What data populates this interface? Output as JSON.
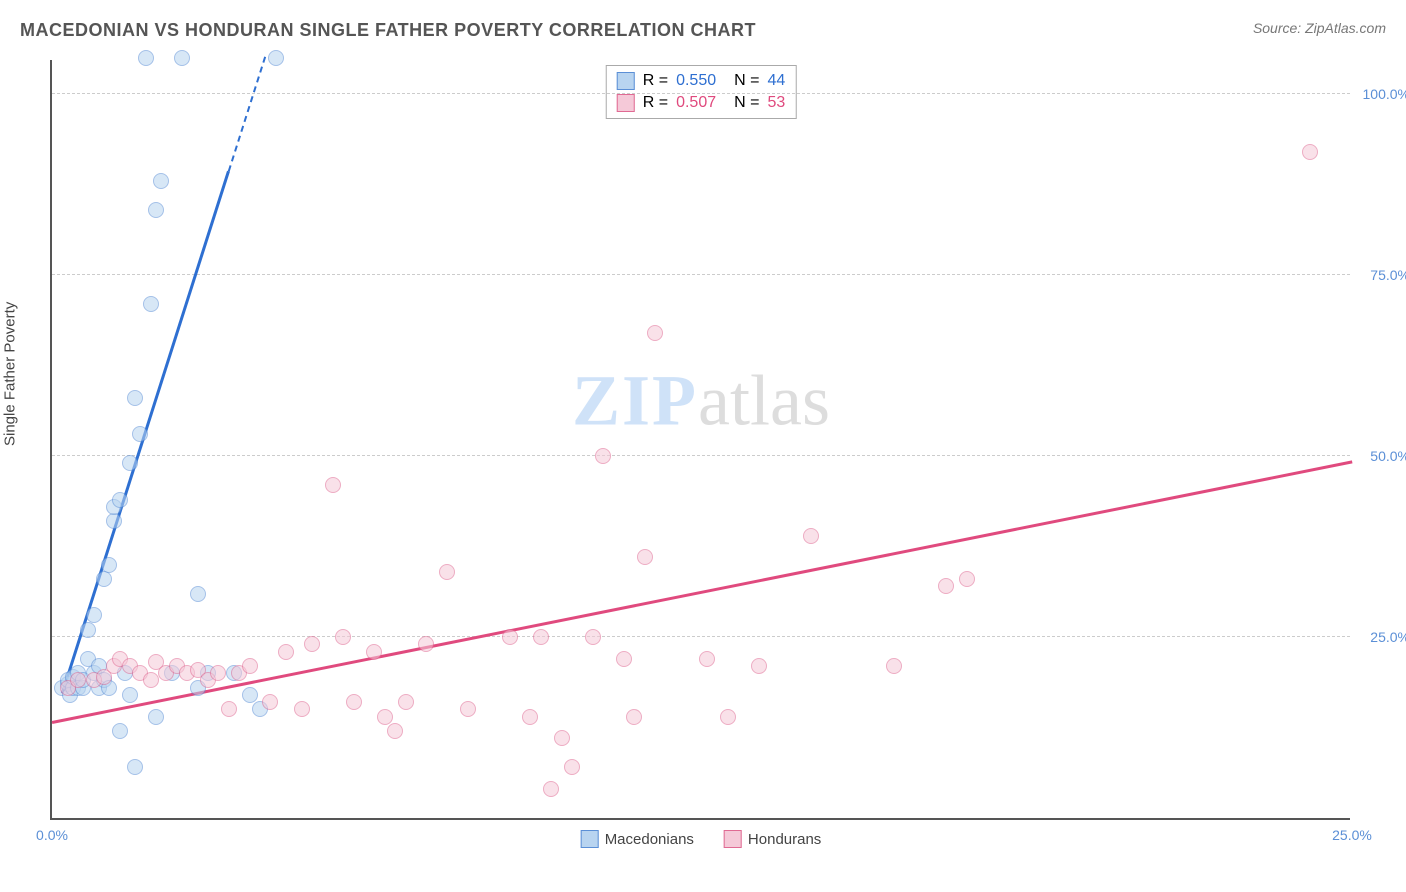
{
  "header": {
    "title": "MACEDONIAN VS HONDURAN SINGLE FATHER POVERTY CORRELATION CHART",
    "source": "Source: ZipAtlas.com"
  },
  "chart": {
    "type": "scatter",
    "ylabel": "Single Father Poverty",
    "background_color": "#ffffff",
    "grid_color": "#cccccc",
    "axis_color": "#555555",
    "label_fontsize": 15,
    "tick_fontsize": 14,
    "title_fontsize": 18,
    "xlim": [
      0,
      25
    ],
    "ylim": [
      0,
      105
    ],
    "yticks": [
      {
        "value": 25,
        "label": "25.0%"
      },
      {
        "value": 50,
        "label": "50.0%"
      },
      {
        "value": 75,
        "label": "75.0%"
      },
      {
        "value": 100,
        "label": "100.0%"
      }
    ],
    "xticks": [
      {
        "value": 0,
        "label": "0.0%"
      },
      {
        "value": 25,
        "label": "25.0%"
      }
    ],
    "ytick_color": "#5b8fd6",
    "xtick_color": "#5b8fd6",
    "watermark": {
      "zip": "ZIP",
      "atlas": "atlas"
    },
    "point_radius": 8,
    "point_opacity": 0.55,
    "series": [
      {
        "name": "Macedonians",
        "color": "#6aa3e0",
        "fill": "#b8d4f0",
        "stroke": "#5b8fd6",
        "trend_color": "#2e6fd1",
        "trend_width": 2.5,
        "stats": {
          "R": "0.550",
          "N": "44"
        },
        "trend": {
          "x1": 0.2,
          "y1": 17,
          "x2": 4.1,
          "y2": 105,
          "dash_from_x": 3.4
        },
        "points": [
          {
            "x": 0.2,
            "y": 18
          },
          {
            "x": 0.3,
            "y": 18.5
          },
          {
            "x": 0.3,
            "y": 19
          },
          {
            "x": 0.35,
            "y": 17
          },
          {
            "x": 0.4,
            "y": 18
          },
          {
            "x": 0.4,
            "y": 19.5
          },
          {
            "x": 0.5,
            "y": 18
          },
          {
            "x": 0.5,
            "y": 20
          },
          {
            "x": 0.6,
            "y": 18
          },
          {
            "x": 0.6,
            "y": 19
          },
          {
            "x": 0.7,
            "y": 22
          },
          {
            "x": 0.7,
            "y": 26
          },
          {
            "x": 0.8,
            "y": 20
          },
          {
            "x": 0.8,
            "y": 28
          },
          {
            "x": 0.9,
            "y": 18
          },
          {
            "x": 0.9,
            "y": 21
          },
          {
            "x": 1.0,
            "y": 19
          },
          {
            "x": 1.0,
            "y": 33
          },
          {
            "x": 1.1,
            "y": 35
          },
          {
            "x": 1.1,
            "y": 18
          },
          {
            "x": 1.2,
            "y": 41
          },
          {
            "x": 1.2,
            "y": 43
          },
          {
            "x": 1.3,
            "y": 12
          },
          {
            "x": 1.3,
            "y": 44
          },
          {
            "x": 1.4,
            "y": 20
          },
          {
            "x": 1.5,
            "y": 49
          },
          {
            "x": 1.5,
            "y": 17
          },
          {
            "x": 1.6,
            "y": 58
          },
          {
            "x": 1.6,
            "y": 7
          },
          {
            "x": 1.7,
            "y": 53
          },
          {
            "x": 1.8,
            "y": 105
          },
          {
            "x": 1.9,
            "y": 71
          },
          {
            "x": 2.0,
            "y": 84
          },
          {
            "x": 2.0,
            "y": 14
          },
          {
            "x": 2.1,
            "y": 88
          },
          {
            "x": 2.3,
            "y": 20
          },
          {
            "x": 2.5,
            "y": 105
          },
          {
            "x": 2.8,
            "y": 31
          },
          {
            "x": 2.8,
            "y": 18
          },
          {
            "x": 3.0,
            "y": 20
          },
          {
            "x": 3.5,
            "y": 20
          },
          {
            "x": 3.8,
            "y": 17
          },
          {
            "x": 4.0,
            "y": 15
          },
          {
            "x": 4.3,
            "y": 105
          }
        ]
      },
      {
        "name": "Hondurans",
        "color": "#e89ab5",
        "fill": "#f5c9d8",
        "stroke": "#e06a93",
        "trend_color": "#e04a7e",
        "trend_width": 2.5,
        "stats": {
          "R": "0.507",
          "N": "53"
        },
        "trend": {
          "x1": 0,
          "y1": 13,
          "x2": 25,
          "y2": 49,
          "dash_from_x": 99
        },
        "points": [
          {
            "x": 0.3,
            "y": 18
          },
          {
            "x": 0.5,
            "y": 19
          },
          {
            "x": 0.8,
            "y": 19
          },
          {
            "x": 1.0,
            "y": 19.5
          },
          {
            "x": 1.2,
            "y": 21
          },
          {
            "x": 1.3,
            "y": 22
          },
          {
            "x": 1.5,
            "y": 21
          },
          {
            "x": 1.7,
            "y": 20
          },
          {
            "x": 1.9,
            "y": 19
          },
          {
            "x": 2.0,
            "y": 21.5
          },
          {
            "x": 2.2,
            "y": 20
          },
          {
            "x": 2.4,
            "y": 21
          },
          {
            "x": 2.6,
            "y": 20
          },
          {
            "x": 2.8,
            "y": 20.5
          },
          {
            "x": 3.0,
            "y": 19
          },
          {
            "x": 3.2,
            "y": 20
          },
          {
            "x": 3.4,
            "y": 15
          },
          {
            "x": 3.6,
            "y": 20
          },
          {
            "x": 3.8,
            "y": 21
          },
          {
            "x": 4.2,
            "y": 16
          },
          {
            "x": 4.5,
            "y": 23
          },
          {
            "x": 4.8,
            "y": 15
          },
          {
            "x": 5.0,
            "y": 24
          },
          {
            "x": 5.4,
            "y": 46
          },
          {
            "x": 5.6,
            "y": 25
          },
          {
            "x": 5.8,
            "y": 16
          },
          {
            "x": 6.2,
            "y": 23
          },
          {
            "x": 6.4,
            "y": 14
          },
          {
            "x": 6.6,
            "y": 12
          },
          {
            "x": 6.8,
            "y": 16
          },
          {
            "x": 7.2,
            "y": 24
          },
          {
            "x": 7.6,
            "y": 34
          },
          {
            "x": 8.0,
            "y": 15
          },
          {
            "x": 8.8,
            "y": 25
          },
          {
            "x": 9.2,
            "y": 14
          },
          {
            "x": 9.4,
            "y": 25
          },
          {
            "x": 9.6,
            "y": 4
          },
          {
            "x": 9.8,
            "y": 11
          },
          {
            "x": 10.0,
            "y": 7
          },
          {
            "x": 10.4,
            "y": 25
          },
          {
            "x": 10.6,
            "y": 50
          },
          {
            "x": 11.0,
            "y": 22
          },
          {
            "x": 11.2,
            "y": 14
          },
          {
            "x": 11.4,
            "y": 36
          },
          {
            "x": 11.6,
            "y": 67
          },
          {
            "x": 12.6,
            "y": 22
          },
          {
            "x": 13.0,
            "y": 14
          },
          {
            "x": 13.6,
            "y": 21
          },
          {
            "x": 14.6,
            "y": 39
          },
          {
            "x": 16.2,
            "y": 21
          },
          {
            "x": 17.2,
            "y": 32
          },
          {
            "x": 17.6,
            "y": 33
          },
          {
            "x": 24.2,
            "y": 92
          }
        ]
      }
    ],
    "legend": {
      "items": [
        "Macedonians",
        "Hondurans"
      ]
    }
  }
}
